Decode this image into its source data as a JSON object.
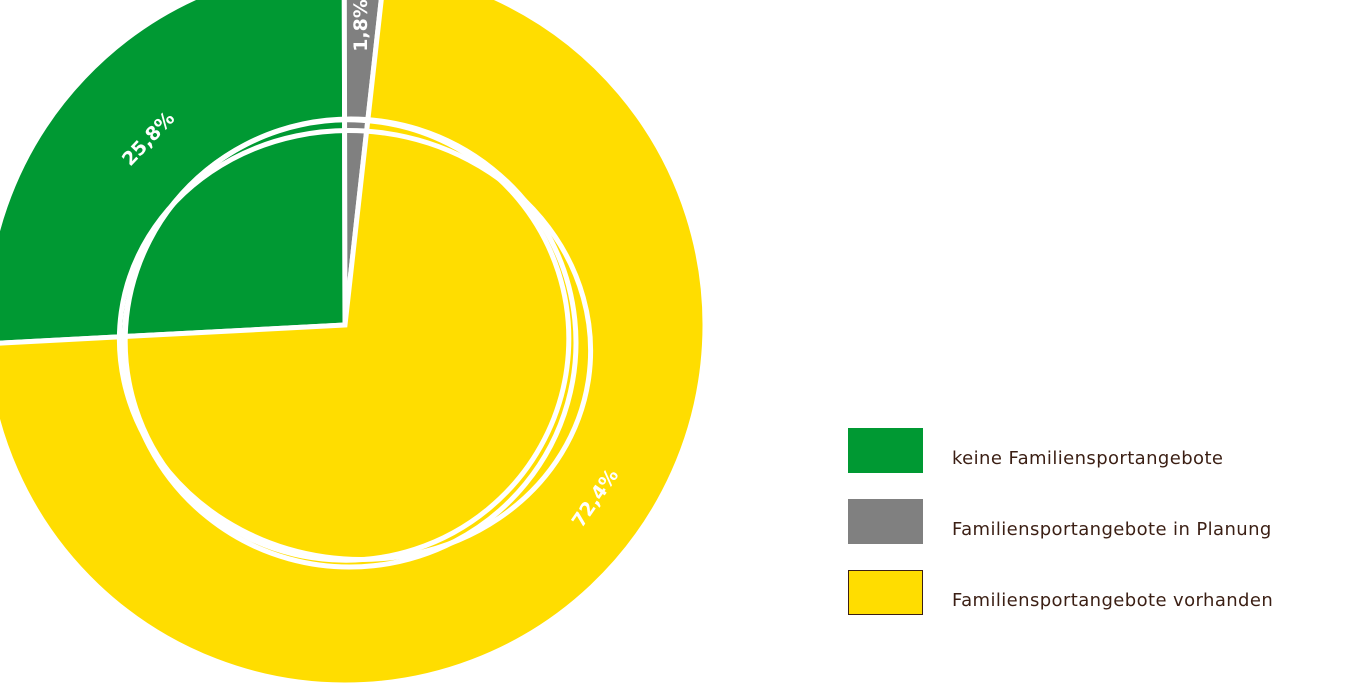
{
  "chart_data": {
    "type": "pie",
    "title": "",
    "slices": [
      {
        "label": "keine Familiensportangebote",
        "value": 25.8,
        "display": "25,8%",
        "color": "#009933"
      },
      {
        "label": "Familiensportangebote in Planung",
        "value": 1.8,
        "display": "1,8%",
        "color": "#808080"
      },
      {
        "label": "Familiensportangebote vorhanden",
        "value": 72.4,
        "display": "72,4%",
        "color": "#ffdd00"
      }
    ],
    "legend_position": "right"
  }
}
